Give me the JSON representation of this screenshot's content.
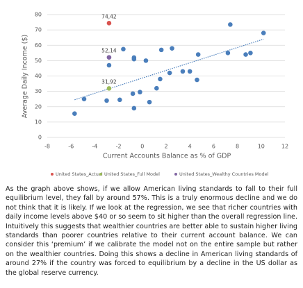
{
  "chart_data": {
    "type": "scatter",
    "x_label": "Current Accounts Balance as % of GDP",
    "y_label": "Average Daily Income ($)",
    "xlim": [
      -8,
      12
    ],
    "xticks": [
      -8,
      -6,
      -4,
      -2,
      0,
      2,
      4,
      6,
      8,
      10,
      12
    ],
    "ylim": [
      0,
      80
    ],
    "yticks": [
      0,
      10,
      20,
      30,
      40,
      50,
      60,
      70,
      80
    ],
    "grid": true,
    "legend": "bottom",
    "series": [
      {
        "color": "#4a7ebb",
        "x": [
          -5.7,
          -4.9,
          -3.0,
          -2.8,
          -1.9,
          -1.6,
          -0.8,
          -0.7,
          -0.7,
          -0.7,
          -0.2,
          0.3,
          0.6,
          1.2,
          1.5,
          1.6,
          2.3,
          2.5,
          3.4,
          4.0,
          4.6,
          4.7,
          7.2,
          7.4,
          8.7,
          9.1,
          10.2
        ],
        "values": [
          15.5,
          25,
          24,
          47,
          24.5,
          57.5,
          28.5,
          19,
          52,
          51,
          29.5,
          50,
          23,
          32,
          38,
          57,
          42,
          58,
          43,
          43,
          37.5,
          54,
          55,
          73.5,
          54,
          55,
          68
        ]
      },
      {
        "name": "United States_Actual",
        "color": "#d9534f",
        "x": [
          -2.8
        ],
        "values": [
          74.42
        ],
        "value_labels": [
          "74,42"
        ]
      },
      {
        "name": "United States_Full Model",
        "color": "#9bbb59",
        "x": [
          -2.8
        ],
        "values": [
          31.92
        ],
        "value_labels": [
          "31,92"
        ]
      },
      {
        "name": "United States_Wealthy Countries Model",
        "color": "#8064a2",
        "x": [
          -2.8
        ],
        "values": [
          52.14
        ],
        "value_labels": [
          "52,14"
        ]
      }
    ],
    "trendline": {
      "color": "#4a7ebb",
      "x": [
        -5.7,
        10.2
      ],
      "values": [
        24.5,
        64
      ]
    }
  },
  "paragraph": "As the graph above shows, if we allow American living standards to fall to their full equilibrium level, they fall by around 57%. This is a truly enormous decline and we do not think that it is likely. If we look at the regression, we see that richer countries with daily income levels above $40 or so seem to sit higher than the overall regression line. Intuitively this suggests that wealthier countries are better able to sustain higher living standards than poorer countries relative to their current account balance. We can consider this ‘premium’ if we calibrate the model not on the entire sample but rather on the wealthier countries. Doing this shows a decline in American living standards of around 27% if the country was forced to equilibrium by a decline in the US dollar as the global reserve currency."
}
